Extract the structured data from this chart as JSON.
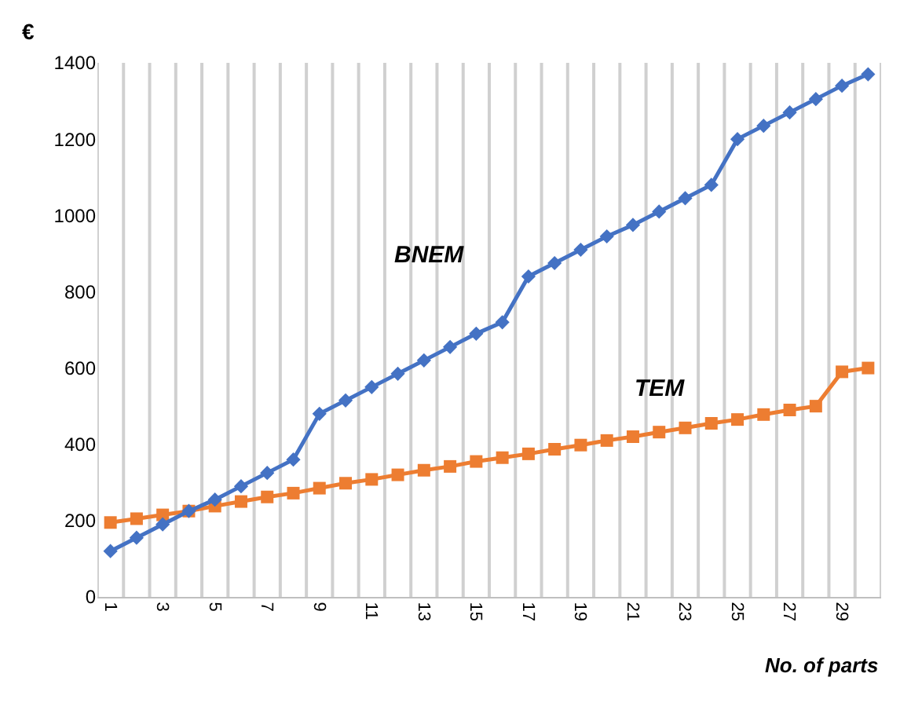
{
  "chart_data": {
    "type": "line",
    "xlabel": "No. of parts",
    "ylabel": "€",
    "categories": [
      "1",
      null,
      "3",
      null,
      "5",
      null,
      "7",
      null,
      "9",
      null,
      "11",
      null,
      "13",
      null,
      "15",
      null,
      "17",
      null,
      "19",
      null,
      "21",
      null,
      "23",
      null,
      "25",
      null,
      "27",
      null,
      "29",
      null
    ],
    "series": [
      {
        "name": "BNEM",
        "color": "#4472c4",
        "marker": "diamond",
        "values": [
          120,
          155,
          190,
          225,
          255,
          290,
          325,
          360,
          480,
          515,
          550,
          585,
          620,
          655,
          690,
          720,
          840,
          875,
          910,
          945,
          975,
          1010,
          1045,
          1080,
          1200,
          1235,
          1270,
          1305,
          1340,
          1370
        ]
      },
      {
        "name": "TEM",
        "color": "#ed7d31",
        "marker": "square",
        "values": [
          195,
          205,
          215,
          225,
          238,
          250,
          262,
          272,
          285,
          298,
          308,
          320,
          332,
          342,
          355,
          365,
          375,
          387,
          398,
          410,
          420,
          432,
          443,
          455,
          465,
          478,
          490,
          500,
          590,
          600
        ]
      }
    ],
    "ylim": [
      0,
      1400
    ],
    "yticks": [
      0,
      200,
      400,
      600,
      800,
      1000,
      1200,
      1400
    ],
    "grid": "x",
    "legend": false,
    "line_style": "solid"
  }
}
